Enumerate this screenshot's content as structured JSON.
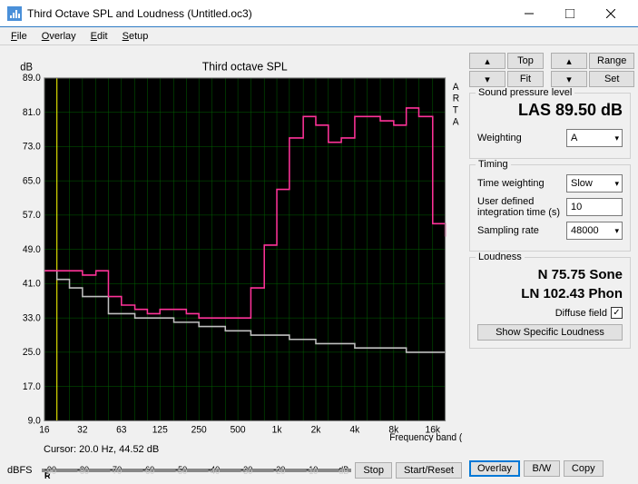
{
  "window": {
    "title": "Third Octave SPL and Loudness (Untitled.oc3)"
  },
  "menu": {
    "file": "File",
    "overlay": "Overlay",
    "edit": "Edit",
    "setup": "Setup"
  },
  "chart": {
    "title": "Third octave SPL",
    "ylabel": "dB",
    "xlabel": "Frequency band (Hz)",
    "side_label": "ARTA",
    "background": "#000000",
    "grid_color": "#006000",
    "text_color": "#c0c0c0",
    "ylim": [
      9,
      89
    ],
    "ytick_step": 8,
    "yticks": [
      "89.0",
      "81.0",
      "73.0",
      "65.0",
      "57.0",
      "49.0",
      "41.0",
      "33.0",
      "25.0",
      "17.0",
      "9.0"
    ],
    "xticks": [
      "16",
      "32",
      "63",
      "125",
      "250",
      "500",
      "1k",
      "2k",
      "4k",
      "8k",
      "16k"
    ],
    "cursor_line_color": "#ffff00",
    "cursor_x_hz": 20,
    "series_pink": {
      "color": "#ff3399",
      "values_db": [
        44,
        44,
        44,
        43,
        44,
        38,
        36,
        35,
        34,
        35,
        35,
        34,
        33,
        33,
        33,
        33,
        40,
        50,
        63,
        75,
        80,
        78,
        74,
        75,
        80,
        80,
        79,
        78,
        82,
        80,
        55,
        52
      ]
    },
    "series_gray": {
      "color": "#c0c0c0",
      "values_db": [
        44,
        42,
        40,
        38,
        38,
        34,
        34,
        33,
        33,
        33,
        32,
        32,
        31,
        31,
        30,
        30,
        29,
        29,
        29,
        28,
        28,
        27,
        27,
        27,
        26,
        26,
        26,
        26,
        25,
        25,
        25,
        25
      ]
    },
    "x_bands_hz": [
      16,
      20,
      25,
      31.5,
      40,
      50,
      63,
      80,
      100,
      125,
      160,
      200,
      250,
      315,
      400,
      500,
      630,
      800,
      1000,
      1250,
      1600,
      2000,
      2500,
      3150,
      4000,
      5000,
      6300,
      8000,
      10000,
      12500,
      16000,
      20000
    ]
  },
  "cursor": {
    "label": "Cursor:",
    "value": "20.0 Hz, 44.52 dB"
  },
  "meter": {
    "label": "dBFS",
    "ticks": [
      "-90",
      "-80",
      "-70",
      "-60",
      "-50",
      "-40",
      "-30",
      "-20",
      "-10",
      "dB"
    ],
    "top": {
      "bg": "#ffff00",
      "peak_color": "#ff0000",
      "letter": "L"
    },
    "bot": {
      "bg": "#00c060",
      "peak_color": "#ff0000",
      "letter": "R",
      "fill_pct": 8,
      "peak_pos_pct": 14
    }
  },
  "buttons": {
    "stop": "Stop",
    "start_reset": "Start/Reset",
    "top": "Top",
    "fit": "Fit",
    "range": "Range",
    "set": "Set",
    "overlay": "Overlay",
    "bw": "B/W",
    "copy": "Copy",
    "show_specific": "Show Specific Loudness"
  },
  "spl": {
    "legend": "Sound pressure level",
    "reading": "LAS 89.50 dB",
    "weighting_label": "Weighting",
    "weighting_value": "A"
  },
  "timing": {
    "legend": "Timing",
    "time_weighting_label": "Time weighting",
    "time_weighting_value": "Slow",
    "integration_label": "User defined integration time (s)",
    "integration_value": "10",
    "sampling_label": "Sampling rate",
    "sampling_value": "48000"
  },
  "loudness": {
    "legend": "Loudness",
    "line1": "N 75.75 Sone",
    "line2": "LN 102.43 Phon",
    "diffuse_label": "Diffuse field",
    "diffuse_checked": true
  }
}
